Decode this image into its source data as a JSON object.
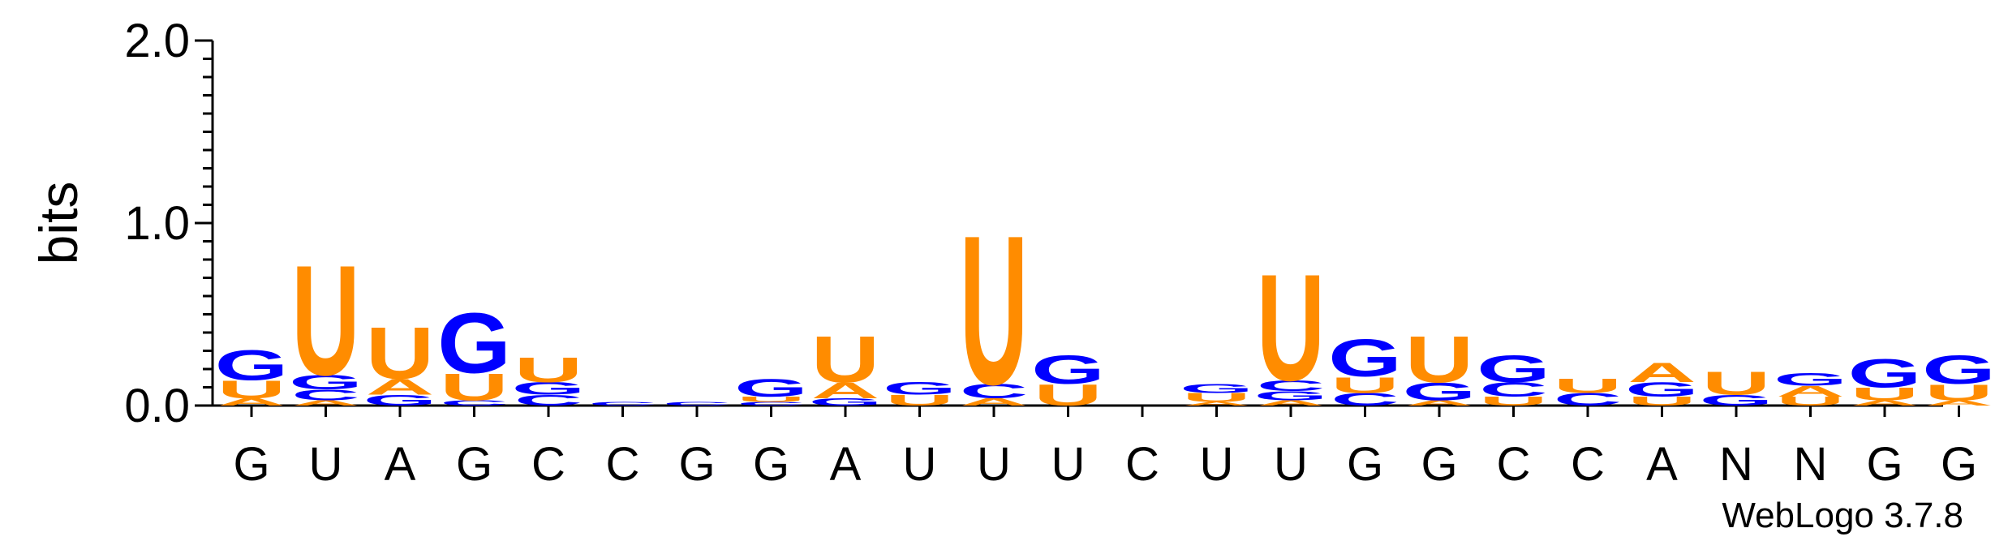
{
  "chart_data": {
    "type": "sequence-logo",
    "ylabel": "bits",
    "ylim": [
      0,
      2.0
    ],
    "y_ticks": [
      "0.0",
      "1.0",
      "2.0"
    ],
    "credit": "WebLogo 3.7.8",
    "colors": {
      "A": "#FF8C00",
      "U": "#FF8C00",
      "G": "#0000FF",
      "C": "#0000FF"
    },
    "positions": [
      {
        "label": "G",
        "stack": [
          {
            "letter": "A",
            "bits": 0.04
          },
          {
            "letter": "U",
            "bits": 0.1
          },
          {
            "letter": "G",
            "bits": 0.17
          }
        ]
      },
      {
        "label": "U",
        "stack": [
          {
            "letter": "A",
            "bits": 0.03
          },
          {
            "letter": "C",
            "bits": 0.06
          },
          {
            "letter": "G",
            "bits": 0.08
          },
          {
            "letter": "U",
            "bits": 0.62
          }
        ]
      },
      {
        "label": "A",
        "stack": [
          {
            "letter": "G",
            "bits": 0.06
          },
          {
            "letter": "A",
            "bits": 0.09
          },
          {
            "letter": "U",
            "bits": 0.29
          }
        ]
      },
      {
        "label": "G",
        "stack": [
          {
            "letter": "C",
            "bits": 0.03
          },
          {
            "letter": "U",
            "bits": 0.15
          },
          {
            "letter": "G",
            "bits": 0.34
          }
        ]
      },
      {
        "label": "C",
        "stack": [
          {
            "letter": "C",
            "bits": 0.06
          },
          {
            "letter": "G",
            "bits": 0.07
          },
          {
            "letter": "U",
            "bits": 0.14
          }
        ]
      },
      {
        "label": "C",
        "stack": [
          {
            "letter": "C",
            "bits": 0.02
          }
        ]
      },
      {
        "label": "G",
        "stack": [
          {
            "letter": "C",
            "bits": 0.02
          }
        ]
      },
      {
        "label": "G",
        "stack": [
          {
            "letter": "C",
            "bits": 0.02
          },
          {
            "letter": "U",
            "bits": 0.03
          },
          {
            "letter": "G",
            "bits": 0.1
          }
        ]
      },
      {
        "label": "A",
        "stack": [
          {
            "letter": "G",
            "bits": 0.04
          },
          {
            "letter": "A",
            "bits": 0.09
          },
          {
            "letter": "U",
            "bits": 0.26
          }
        ]
      },
      {
        "label": "U",
        "stack": [
          {
            "letter": "U",
            "bits": 0.06
          },
          {
            "letter": "G",
            "bits": 0.07
          }
        ]
      },
      {
        "label": "U",
        "stack": [
          {
            "letter": "A",
            "bits": 0.04
          },
          {
            "letter": "C",
            "bits": 0.08
          },
          {
            "letter": "U",
            "bits": 0.84
          }
        ]
      },
      {
        "label": "U",
        "stack": [
          {
            "letter": "U",
            "bits": 0.12
          },
          {
            "letter": "G",
            "bits": 0.16
          }
        ]
      },
      {
        "label": "C",
        "stack": []
      },
      {
        "label": "U",
        "stack": [
          {
            "letter": "A",
            "bits": 0.02
          },
          {
            "letter": "U",
            "bits": 0.05
          },
          {
            "letter": "G",
            "bits": 0.05
          }
        ]
      },
      {
        "label": "U",
        "stack": [
          {
            "letter": "A",
            "bits": 0.03
          },
          {
            "letter": "G",
            "bits": 0.05
          },
          {
            "letter": "C",
            "bits": 0.06
          },
          {
            "letter": "U",
            "bits": 0.6
          }
        ]
      },
      {
        "label": "G",
        "stack": [
          {
            "letter": "C",
            "bits": 0.07
          },
          {
            "letter": "U",
            "bits": 0.09
          },
          {
            "letter": "G",
            "bits": 0.21
          }
        ]
      },
      {
        "label": "G",
        "stack": [
          {
            "letter": "A",
            "bits": 0.03
          },
          {
            "letter": "G",
            "bits": 0.1
          },
          {
            "letter": "U",
            "bits": 0.26
          }
        ]
      },
      {
        "label": "C",
        "stack": [
          {
            "letter": "U",
            "bits": 0.05
          },
          {
            "letter": "C",
            "bits": 0.08
          },
          {
            "letter": "G",
            "bits": 0.15
          }
        ]
      },
      {
        "label": "C",
        "stack": [
          {
            "letter": "C",
            "bits": 0.07
          },
          {
            "letter": "U",
            "bits": 0.08
          }
        ]
      },
      {
        "label": "A",
        "stack": [
          {
            "letter": "U",
            "bits": 0.05
          },
          {
            "letter": "G",
            "bits": 0.08
          },
          {
            "letter": "A",
            "bits": 0.11
          }
        ]
      },
      {
        "label": "N",
        "stack": [
          {
            "letter": "G",
            "bits": 0.06
          },
          {
            "letter": "U",
            "bits": 0.13
          }
        ]
      },
      {
        "label": "N",
        "stack": [
          {
            "letter": "U",
            "bits": 0.05
          },
          {
            "letter": "A",
            "bits": 0.06
          },
          {
            "letter": "G",
            "bits": 0.07
          }
        ]
      },
      {
        "label": "G",
        "stack": [
          {
            "letter": "A",
            "bits": 0.03
          },
          {
            "letter": "U",
            "bits": 0.07
          },
          {
            "letter": "G",
            "bits": 0.16
          }
        ]
      },
      {
        "label": "G",
        "stack": [
          {
            "letter": "A",
            "bits": 0.03
          },
          {
            "letter": "U",
            "bits": 0.09
          },
          {
            "letter": "G",
            "bits": 0.16
          }
        ]
      }
    ]
  }
}
